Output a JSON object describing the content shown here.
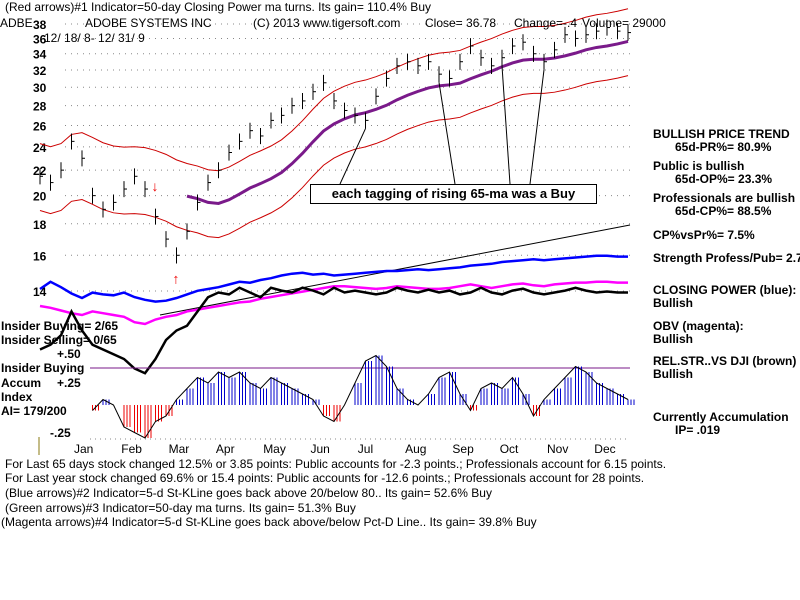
{
  "header": {
    "line1": "(Red arrows)#1 Indicator=50-day Closing Power ma turns.  Its gain= 110.4% Buy",
    "ticker": "ADBE",
    "company": "ADOBE SYSTEMS INC",
    "copyright": "(C) 2013 www.tigersoft.com",
    "close": "Close=  36.78",
    "change": "Change=-.4",
    "volume": "Volume=  29000",
    "date_range": "12/ 18/ 8- 12/ 31/ 9"
  },
  "annotation": "each tagging of rising 65-ma was a Buy",
  "right_panel": [
    {
      "label": "BULLISH PRICE TREND",
      "value": "65d-PR%= 80.9%"
    },
    {
      "label": "Public is bullish",
      "value": "65d-OP%= 23.3%"
    },
    {
      "label": "Professionals are bullish",
      "value": "65d-CP%= 88.5%"
    },
    {
      "label": "CP%vsPr%=  7.5%"
    },
    {
      "label": "Strength Profess/Pub= 2.7"
    },
    {
      "label": "CLOSING POWER (blue):",
      "value": "Bullish"
    },
    {
      "label": "OBV (magenta):",
      "value": "Bullish"
    },
    {
      "label": "REL.STR..VS DJI (brown)",
      "value": "Bullish"
    },
    {
      "label": "Currently Accumulation",
      "value": "IP=  .019"
    }
  ],
  "left_panel": {
    "insider_buying": "Insider Buying= 2/65",
    "insider_selling": "Insider Selling= 0/65",
    "plus50": "+.50",
    "insider_buying2": "Insider Buying",
    "plus25": "+.25",
    "accum": "Accum",
    "index": "Index",
    "ai": "AI= 179/200",
    "minus25": "-.25"
  },
  "footer": [
    "For Last 65 days stock changed  12.5% or  3.85 points:  Public accounts for -2.3 points.;  Professionals account for  6.15 points.",
    "For Last year stock changed  69.6% or  15.4 points:  Public accounts for -12.6 points.;  Professionals account for  28 points.",
    "(Blue arrows)#2 Indicator=5-d St-KLine goes back above 20/below 80..  Its gain= 52.6% Buy",
    "(Green arrows)#3 Indicator=50-day ma turns.  Its gain= 51.3% Buy",
    "(Magenta arrows)#4 Indicator=5-d St-KLine goes back above/below Pct-D Line..  Its gain= 39.8% Buy"
  ],
  "chart_data": {
    "type": "line",
    "title": "ADBE daily price with 65-day MA and bands",
    "yticks": [
      "38",
      "36",
      "34",
      "32",
      "30",
      "28",
      "26",
      "24",
      "22",
      "20",
      "18",
      "16",
      "14"
    ],
    "ylim": [
      14,
      38
    ],
    "yscale": "log",
    "months": [
      "Jan",
      "Feb",
      "Mar",
      "Apr",
      "May",
      "Jun",
      "Jul",
      "Aug",
      "Sep",
      "Oct",
      "Nov",
      "Dec"
    ],
    "price": [
      21.5,
      21,
      22,
      24.5,
      23,
      20,
      19,
      19.5,
      20.5,
      21.5,
      20.5,
      18.5,
      17,
      16,
      17.5,
      19.5,
      21,
      22,
      23.5,
      24.5,
      25.5,
      25,
      26.5,
      27,
      28,
      28.5,
      29.5,
      30.5,
      28.5,
      27.5,
      27,
      26.5,
      29,
      31,
      32.5,
      33,
      32.5,
      33,
      31.5,
      31,
      33,
      35,
      33.5,
      32.5,
      33.5,
      35,
      35.5,
      34,
      33,
      34.5,
      36.5,
      36,
      36.5,
      37,
      37.5,
      37,
      36.8
    ],
    "closing_power": [
      40,
      48,
      42,
      35,
      30,
      36,
      34,
      33,
      36,
      31,
      28,
      26,
      27,
      30,
      34,
      38,
      40,
      42,
      45,
      48,
      47,
      50,
      52,
      55,
      57,
      58,
      56,
      57,
      55,
      56,
      57,
      58,
      59,
      60,
      60,
      61,
      62,
      61,
      62,
      63,
      64,
      66,
      67,
      68,
      70,
      71,
      72,
      73,
      72,
      73,
      74,
      75,
      76,
      77,
      77,
      76,
      76
    ],
    "obv": [
      30,
      28,
      25,
      22,
      20,
      24,
      22,
      20,
      18,
      12,
      10,
      15,
      18,
      20,
      24,
      26,
      28,
      30,
      32,
      34,
      35,
      38,
      40,
      42,
      44,
      46,
      48,
      50,
      52,
      52,
      51,
      50,
      49,
      50,
      52,
      51,
      50,
      49,
      49,
      50,
      52,
      54,
      52,
      50,
      52,
      54,
      55,
      53,
      52,
      54,
      55,
      56,
      56,
      57,
      57,
      56,
      56
    ],
    "rel_strength": [
      -10,
      -5,
      5,
      30,
      10,
      -5,
      -10,
      -15,
      -20,
      -30,
      -35,
      -20,
      0,
      10,
      15,
      30,
      45,
      50,
      48,
      55,
      50,
      45,
      55,
      52,
      50,
      55,
      52,
      48,
      55,
      50,
      52,
      50,
      48,
      50,
      55,
      52,
      50,
      53,
      50,
      52,
      48,
      50,
      55,
      50,
      48,
      52,
      54,
      50,
      48,
      50,
      52,
      55,
      52,
      50,
      51,
      50,
      50
    ],
    "accum_index": [
      0.2,
      0.3,
      0.1,
      0.5,
      0.2,
      -0.1,
      0.1,
      0,
      -0.4,
      -0.5,
      -0.6,
      -0.3,
      -0.2,
      0.1,
      0.3,
      0.5,
      0.4,
      0.6,
      0.5,
      0.6,
      0.4,
      0.3,
      0.5,
      0.4,
      0.3,
      0.2,
      0.1,
      -0.2,
      -0.3,
      0,
      0.4,
      0.8,
      0.9,
      0.7,
      0.3,
      0.1,
      0,
      0.2,
      0.5,
      0.6,
      0.2,
      -0.1,
      0.3,
      0.4,
      0.3,
      0.5,
      0.2,
      -0.2,
      0.1,
      0.3,
      0.5,
      0.7,
      0.6,
      0.4,
      0.3,
      0.2,
      0.1
    ]
  }
}
